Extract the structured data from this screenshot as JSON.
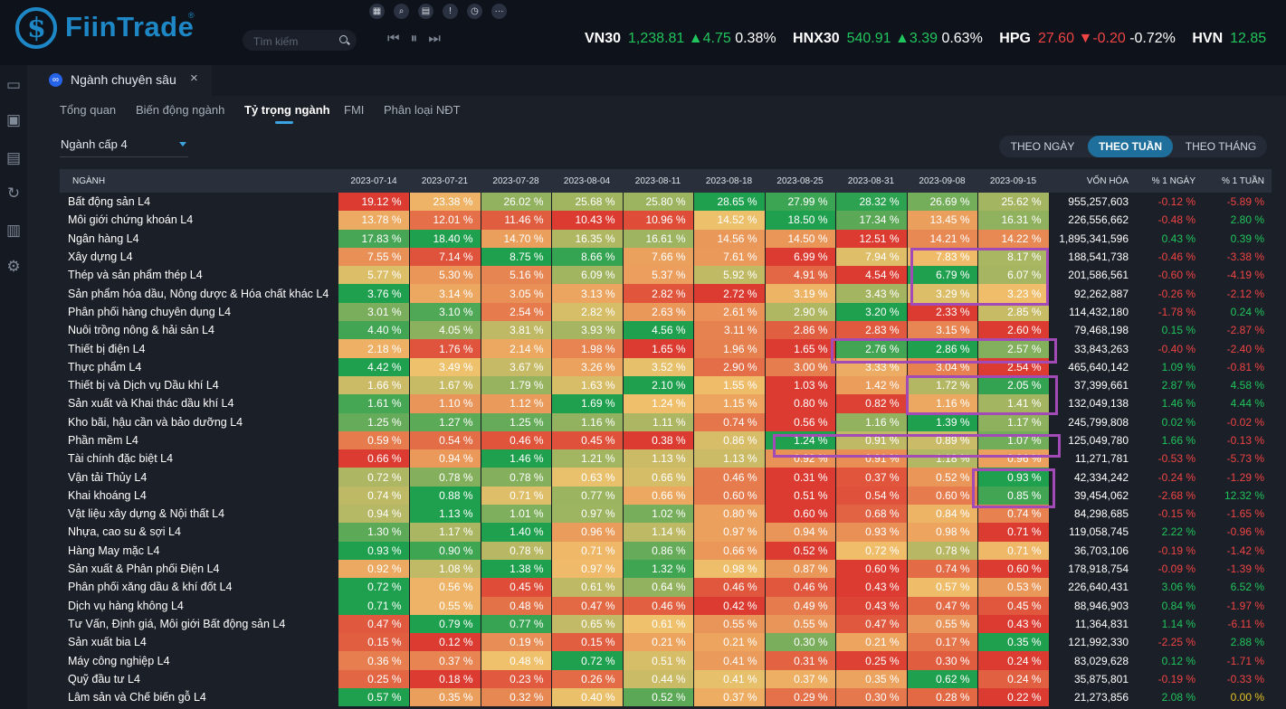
{
  "app": {
    "brand": "FiinTrade",
    "brand_mark": "®",
    "search_placeholder": "Tìm kiếm",
    "toolbar_icons": [
      "grid-icon",
      "zoom-icon",
      "calendar-icon",
      "info-icon",
      "clock-icon",
      "more-icon"
    ],
    "player_controls": "⏮ ⏸ ⏭"
  },
  "ticker": [
    {
      "symbol": "VN30",
      "price": "1,238.81",
      "change": "4.75",
      "pct": "0.38%",
      "dir": "up"
    },
    {
      "symbol": "HNX30",
      "price": "540.91",
      "change": "3.39",
      "pct": "0.63%",
      "dir": "up"
    },
    {
      "symbol": "HPG",
      "price": "27.60",
      "change": "-0.20",
      "pct": "-0.72%",
      "dir": "down"
    },
    {
      "symbol": "HVN",
      "price": "12.85",
      "change": "",
      "pct": "",
      "dir": "up"
    }
  ],
  "sidebar_icons": [
    "window-icon",
    "camera-icon",
    "save-icon",
    "refresh-icon",
    "pdf-icon",
    "settings-icon"
  ],
  "tab": {
    "title": "Ngành chuyên sâu",
    "close": "×"
  },
  "subtabs": [
    "Tổng quan",
    "Biến động ngành",
    "Tỷ trọng ngành",
    "FMI",
    "Phân loại NĐT"
  ],
  "active_subtab": 2,
  "level_select": "Ngành cấp 4",
  "period_toggle": [
    "THEO NGÀY",
    "THEO TUẦN",
    "THEO THÁNG"
  ],
  "active_period": 1,
  "columns": {
    "sector": "NGÀNH",
    "dates": [
      "2023-07-14",
      "2023-07-21",
      "2023-07-28",
      "2023-08-04",
      "2023-08-11",
      "2023-08-18",
      "2023-08-25",
      "2023-08-31",
      "2023-09-08",
      "2023-09-15"
    ],
    "cap": "VỐN HÓA",
    "day": "% 1 NGÀY",
    "week": "% 1 TUẦN"
  },
  "rows": [
    {
      "name": "Bất động sản L4",
      "vals": [
        "19.12 %",
        "23.38 %",
        "26.02 %",
        "25.68 %",
        "25.80 %",
        "28.65 %",
        "27.99 %",
        "28.32 %",
        "26.69 %",
        "25.62 %"
      ],
      "cap": "955,257,603",
      "day": "-0.12 %",
      "week": "-5.89 %"
    },
    {
      "name": "Môi giới chứng khoán L4",
      "vals": [
        "13.78 %",
        "12.01 %",
        "11.46 %",
        "10.43 %",
        "10.96 %",
        "14.52 %",
        "18.50 %",
        "17.34 %",
        "13.45 %",
        "16.31 %"
      ],
      "cap": "226,556,662",
      "day": "-0.48 %",
      "week": "2.80 %"
    },
    {
      "name": "Ngân hàng L4",
      "vals": [
        "17.83 %",
        "18.40 %",
        "14.70 %",
        "16.35 %",
        "16.61 %",
        "14.56 %",
        "14.50 %",
        "12.51 %",
        "14.21 %",
        "14.22 %"
      ],
      "cap": "1,895,341,596",
      "day": "0.43 %",
      "week": "0.39 %"
    },
    {
      "name": "Xây dựng L4",
      "vals": [
        "7.55 %",
        "7.14 %",
        "8.75 %",
        "8.66 %",
        "7.66 %",
        "7.61 %",
        "6.99 %",
        "7.94 %",
        "7.83 %",
        "8.17 %"
      ],
      "cap": "188,541,738",
      "day": "-0.46 %",
      "week": "-3.38 %"
    },
    {
      "name": "Thép và sản phẩm thép L4",
      "vals": [
        "5.77 %",
        "5.30 %",
        "5.16 %",
        "6.09 %",
        "5.37 %",
        "5.92 %",
        "4.91 %",
        "4.54 %",
        "6.79 %",
        "6.07 %"
      ],
      "cap": "201,586,561",
      "day": "-0.60 %",
      "week": "-4.19 %"
    },
    {
      "name": "Sản phẩm hóa dầu, Nông dược & Hóa chất khác L4",
      "vals": [
        "3.76 %",
        "3.14 %",
        "3.05 %",
        "3.13 %",
        "2.82 %",
        "2.72 %",
        "3.19 %",
        "3.43 %",
        "3.29 %",
        "3.23 %"
      ],
      "cap": "92,262,887",
      "day": "-0.26 %",
      "week": "-2.12 %"
    },
    {
      "name": "Phân phối hàng chuyên dụng L4",
      "vals": [
        "3.01 %",
        "3.10 %",
        "2.54 %",
        "2.82 %",
        "2.63 %",
        "2.61 %",
        "2.90 %",
        "3.20 %",
        "2.33 %",
        "2.85 %"
      ],
      "cap": "114,432,180",
      "day": "-1.78 %",
      "week": "0.24 %"
    },
    {
      "name": "Nuôi trồng nông & hải sản L4",
      "vals": [
        "4.40 %",
        "4.05 %",
        "3.81 %",
        "3.93 %",
        "4.56 %",
        "3.11 %",
        "2.86 %",
        "2.83 %",
        "3.15 %",
        "2.60 %"
      ],
      "cap": "79,468,198",
      "day": "0.15 %",
      "week": "-2.87 %"
    },
    {
      "name": "Thiết bị điện L4",
      "vals": [
        "2.18 %",
        "1.76 %",
        "2.14 %",
        "1.98 %",
        "1.65 %",
        "1.96 %",
        "1.65 %",
        "2.76 %",
        "2.86 %",
        "2.57 %"
      ],
      "cap": "33,843,263",
      "day": "-0.40 %",
      "week": "-2.40 %"
    },
    {
      "name": "Thực phẩm L4",
      "vals": [
        "4.42 %",
        "3.49 %",
        "3.67 %",
        "3.26 %",
        "3.52 %",
        "2.90 %",
        "3.00 %",
        "3.33 %",
        "3.04 %",
        "2.54 %"
      ],
      "cap": "465,640,142",
      "day": "1.09 %",
      "week": "-0.81 %"
    },
    {
      "name": "Thiết bị và Dịch vụ Dầu khí L4",
      "vals": [
        "1.66 %",
        "1.67 %",
        "1.79 %",
        "1.63 %",
        "2.10 %",
        "1.55 %",
        "1.03 %",
        "1.42 %",
        "1.72 %",
        "2.05 %"
      ],
      "cap": "37,399,661",
      "day": "2.87 %",
      "week": "4.58 %"
    },
    {
      "name": "Sản xuất và Khai thác dầu khí L4",
      "vals": [
        "1.61 %",
        "1.10 %",
        "1.12 %",
        "1.69 %",
        "1.24 %",
        "1.15 %",
        "0.80 %",
        "0.82 %",
        "1.16 %",
        "1.41 %"
      ],
      "cap": "132,049,138",
      "day": "1.46 %",
      "week": "4.44 %"
    },
    {
      "name": "Kho bãi, hậu cần và bảo dưỡng L4",
      "vals": [
        "1.25 %",
        "1.27 %",
        "1.25 %",
        "1.16 %",
        "1.11 %",
        "0.74 %",
        "0.56 %",
        "1.16 %",
        "1.39 %",
        "1.17 %"
      ],
      "cap": "245,799,808",
      "day": "0.02 %",
      "week": "-0.02 %"
    },
    {
      "name": "Phần mềm L4",
      "vals": [
        "0.59 %",
        "0.54 %",
        "0.46 %",
        "0.45 %",
        "0.38 %",
        "0.86 %",
        "1.24 %",
        "0.91 %",
        "0.89 %",
        "1.07 %"
      ],
      "cap": "125,049,780",
      "day": "1.66 %",
      "week": "-0.13 %"
    },
    {
      "name": "Tài chính đặc biệt L4",
      "vals": [
        "0.66 %",
        "0.94 %",
        "1.46 %",
        "1.21 %",
        "1.13 %",
        "1.13 %",
        "0.92 %",
        "0.91 %",
        "1.18 %",
        "0.96 %"
      ],
      "cap": "11,271,781",
      "day": "-0.53 %",
      "week": "-5.73 %"
    },
    {
      "name": "Vận tải Thủy L4",
      "vals": [
        "0.72 %",
        "0.78 %",
        "0.78 %",
        "0.63 %",
        "0.66 %",
        "0.46 %",
        "0.31 %",
        "0.37 %",
        "0.52 %",
        "0.93 %"
      ],
      "cap": "42,334,242",
      "day": "-0.24 %",
      "week": "-1.29 %"
    },
    {
      "name": "Khai khoáng L4",
      "vals": [
        "0.74 %",
        "0.88 %",
        "0.71 %",
        "0.77 %",
        "0.66 %",
        "0.60 %",
        "0.51 %",
        "0.54 %",
        "0.60 %",
        "0.85 %"
      ],
      "cap": "39,454,062",
      "day": "-2.68 %",
      "week": "12.32 %"
    },
    {
      "name": "Vật liệu xây dựng & Nội thất L4",
      "vals": [
        "0.94 %",
        "1.13 %",
        "1.01 %",
        "0.97 %",
        "1.02 %",
        "0.80 %",
        "0.60 %",
        "0.68 %",
        "0.84 %",
        "0.74 %"
      ],
      "cap": "84,298,685",
      "day": "-0.15 %",
      "week": "-1.65 %"
    },
    {
      "name": "Nhựa, cao su & sợi L4",
      "vals": [
        "1.30 %",
        "1.17 %",
        "1.40 %",
        "0.96 %",
        "1.14 %",
        "0.97 %",
        "0.94 %",
        "0.93 %",
        "0.98 %",
        "0.71 %"
      ],
      "cap": "119,058,745",
      "day": "2.22 %",
      "week": "-0.96 %"
    },
    {
      "name": "Hàng May mặc L4",
      "vals": [
        "0.93 %",
        "0.90 %",
        "0.78 %",
        "0.71 %",
        "0.86 %",
        "0.66 %",
        "0.52 %",
        "0.72 %",
        "0.78 %",
        "0.71 %"
      ],
      "cap": "36,703,106",
      "day": "-0.19 %",
      "week": "-1.42 %"
    },
    {
      "name": "Sản xuất & Phân phối Điện L4",
      "vals": [
        "0.92 %",
        "1.08 %",
        "1.38 %",
        "0.97 %",
        "1.32 %",
        "0.98 %",
        "0.87 %",
        "0.60 %",
        "0.74 %",
        "0.60 %"
      ],
      "cap": "178,918,754",
      "day": "-0.09 %",
      "week": "-1.39 %"
    },
    {
      "name": "Phân phối xăng dầu & khí đốt L4",
      "vals": [
        "0.72 %",
        "0.56 %",
        "0.45 %",
        "0.61 %",
        "0.64 %",
        "0.46 %",
        "0.46 %",
        "0.43 %",
        "0.57 %",
        "0.53 %"
      ],
      "cap": "226,640,431",
      "day": "3.06 %",
      "week": "6.52 %"
    },
    {
      "name": "Dịch vụ hàng không L4",
      "vals": [
        "0.71 %",
        "0.55 %",
        "0.48 %",
        "0.47 %",
        "0.46 %",
        "0.42 %",
        "0.49 %",
        "0.43 %",
        "0.47 %",
        "0.45 %"
      ],
      "cap": "88,946,903",
      "day": "0.84 %",
      "week": "-1.97 %"
    },
    {
      "name": "Tư Vấn, Định giá, Môi giới Bất động sản L4",
      "vals": [
        "0.47 %",
        "0.79 %",
        "0.77 %",
        "0.65 %",
        "0.61 %",
        "0.55 %",
        "0.55 %",
        "0.47 %",
        "0.55 %",
        "0.43 %"
      ],
      "cap": "11,364,831",
      "day": "1.14 %",
      "week": "-6.11 %"
    },
    {
      "name": "Sản xuất bia L4",
      "vals": [
        "0.15 %",
        "0.12 %",
        "0.19 %",
        "0.15 %",
        "0.21 %",
        "0.21 %",
        "0.30 %",
        "0.21 %",
        "0.17 %",
        "0.35 %"
      ],
      "cap": "121,992,330",
      "day": "-2.25 %",
      "week": "2.88 %"
    },
    {
      "name": "Máy công nghiệp L4",
      "vals": [
        "0.36 %",
        "0.37 %",
        "0.48 %",
        "0.72 %",
        "0.51 %",
        "0.41 %",
        "0.31 %",
        "0.25 %",
        "0.30 %",
        "0.24 %"
      ],
      "cap": "83,029,628",
      "day": "0.12 %",
      "week": "-1.71 %"
    },
    {
      "name": "Quỹ đầu tư L4",
      "vals": [
        "0.25 %",
        "0.18 %",
        "0.23 %",
        "0.26 %",
        "0.44 %",
        "0.41 %",
        "0.37 %",
        "0.35 %",
        "0.62 %",
        "0.24 %"
      ],
      "cap": "35,875,801",
      "day": "-0.19 %",
      "week": "-0.33 %"
    },
    {
      "name": "Lâm sản và Chế biến gỗ L4",
      "vals": [
        "0.57 %",
        "0.35 %",
        "0.32 %",
        "0.40 %",
        "0.52 %",
        "0.37 %",
        "0.29 %",
        "0.30 %",
        "0.28 %",
        "0.22 %"
      ],
      "cap": "21,273,856",
      "day": "2.08 %",
      "week": "0.00 %"
    }
  ],
  "colors": {
    "up": "#21c55d",
    "down": "#ef4444",
    "accent": "#1e88c7",
    "highlight": "#a24ab6",
    "heat_low": "#dc3b31",
    "heat_mid": "#f0c16c",
    "heat_high": "#1fa04f"
  }
}
